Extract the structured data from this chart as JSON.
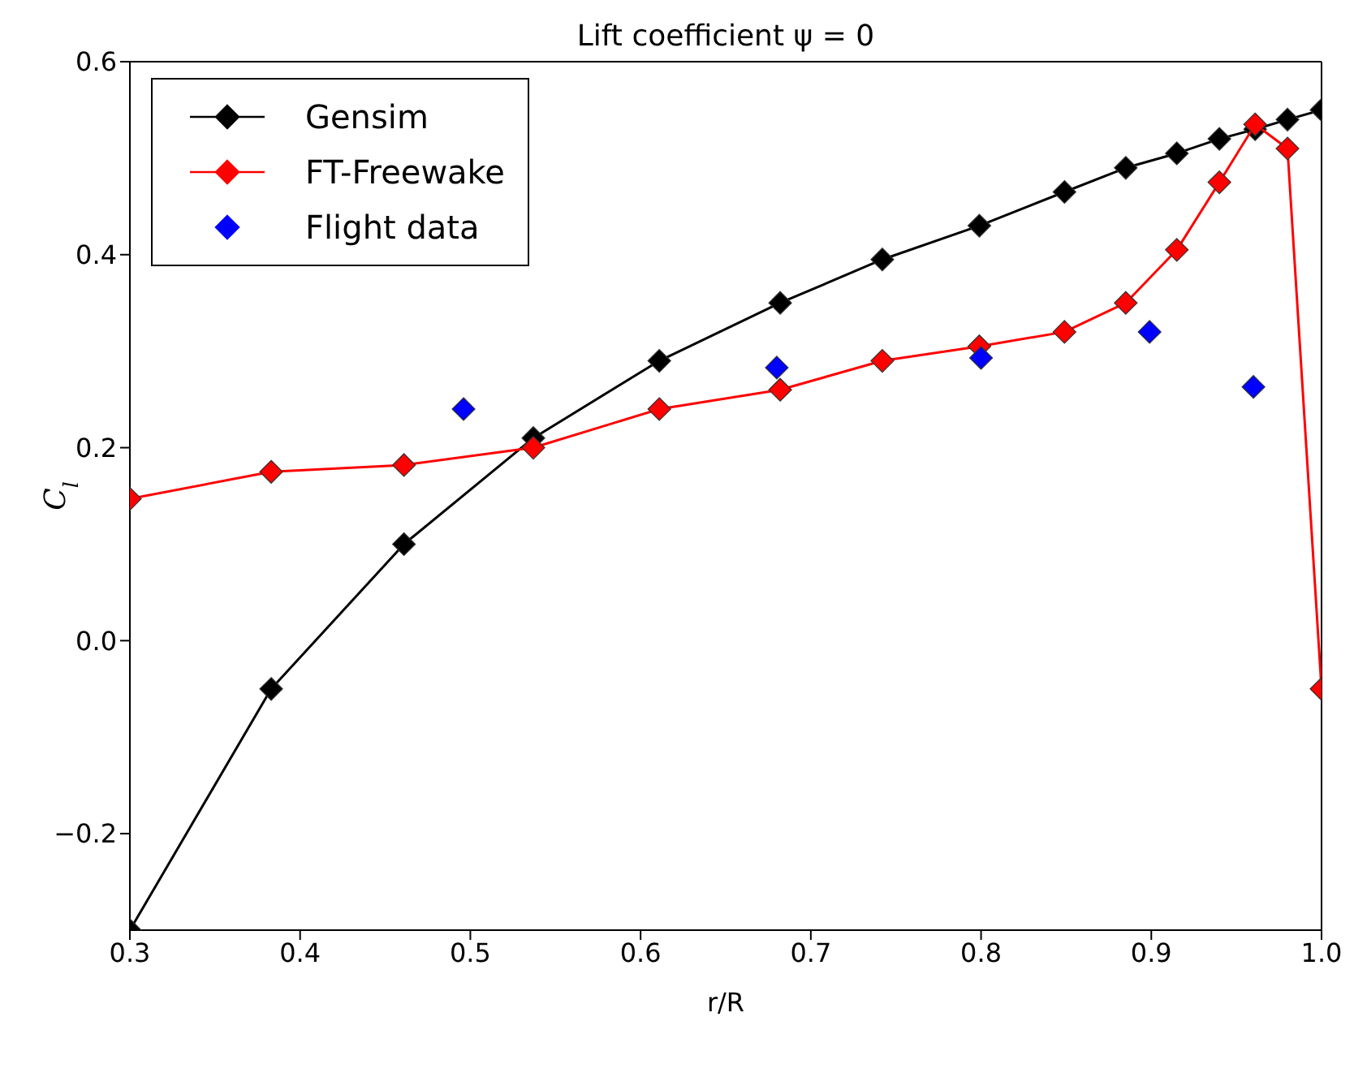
{
  "chart_data": {
    "type": "line",
    "title": "Lift coefficient ψ = 0",
    "xlabel": "r/R",
    "ylabel": "C$_{l}$",
    "xlim": [
      0.3,
      1.0
    ],
    "xticks": [
      0.3,
      0.4,
      0.5,
      0.6,
      0.7,
      0.8,
      0.9,
      {
        "value": 1.0,
        "label": "1.0"
      }
    ],
    "ylim": [
      -0.3,
      0.6
    ],
    "yticks": [
      {
        "value": -0.2,
        "label": "−0.2"
      },
      {
        "value": 0,
        "label": "0.0"
      },
      0.2,
      0.4,
      0.6
    ],
    "legend": "top left",
    "marker": "diamond",
    "series": [
      {
        "name": "Gensim",
        "color": "#000000",
        "x": [
          0.3,
          0.383,
          0.461,
          0.537,
          0.611,
          0.682,
          0.742,
          0.799,
          0.849,
          0.885,
          0.915,
          0.94,
          0.961,
          0.98,
          1.0
        ],
        "values": [
          -0.3,
          -0.05,
          0.1,
          0.21,
          0.29,
          0.35,
          0.395,
          0.43,
          0.465,
          0.49,
          0.505,
          0.52,
          0.53,
          0.54,
          0.55
        ]
      },
      {
        "name": "FT-Freewake",
        "color": "#ff0000",
        "x": [
          0.3,
          0.383,
          0.461,
          0.537,
          0.611,
          0.682,
          0.742,
          0.799,
          0.849,
          0.885,
          0.915,
          0.94,
          0.961,
          0.98,
          1.0
        ],
        "values": [
          0.147,
          0.175,
          0.182,
          0.2,
          0.24,
          0.26,
          0.29,
          0.305,
          0.32,
          0.35,
          0.405,
          0.475,
          0.535,
          0.51,
          -0.05
        ]
      },
      {
        "name": "Flight data",
        "type": "scatter",
        "color": "#0000ff",
        "x": [
          0.496,
          0.68,
          0.8,
          0.899,
          0.96
        ],
        "values": [
          0.24,
          0.283,
          0.293,
          0.32,
          0.263
        ]
      }
    ]
  }
}
